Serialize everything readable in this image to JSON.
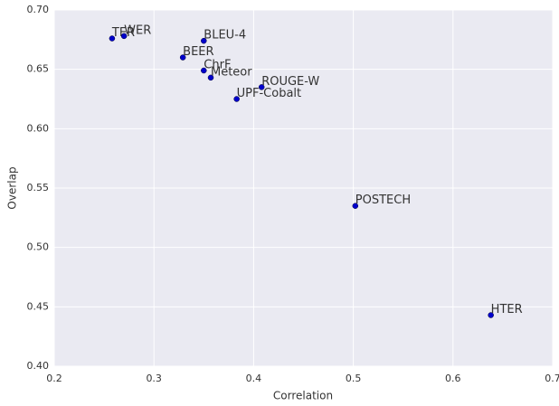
{
  "chart_data": {
    "type": "scatter",
    "x_label": "Correlation",
    "y_label": "Overlap",
    "labels": [
      "TER",
      "WER",
      "BLEU-4",
      "BEER",
      "ChrF",
      "Meteor",
      "ROUGE-W",
      "UPF-Cobalt",
      "POSTECH",
      "HTER"
    ],
    "x": [
      0.258,
      0.27,
      0.35,
      0.329,
      0.35,
      0.357,
      0.408,
      0.383,
      0.502,
      0.638
    ],
    "values": [
      0.676,
      0.678,
      0.674,
      0.66,
      0.649,
      0.643,
      0.635,
      0.625,
      0.535,
      0.443
    ],
    "color": "#0000cc",
    "xlim": [
      0.2,
      0.7
    ],
    "xticks": [
      0.2,
      0.3,
      0.4,
      0.5,
      0.6,
      0.7
    ],
    "ylim": [
      0.4,
      0.7
    ],
    "yticks": [
      {
        "value": 0.4,
        "label": "0.40"
      },
      0.45,
      {
        "value": 0.5,
        "label": "0.50"
      },
      0.55,
      {
        "value": 0.6,
        "label": "0.60"
      },
      0.65,
      {
        "value": 0.7,
        "label": "0.70"
      }
    ],
    "grid": true
  }
}
